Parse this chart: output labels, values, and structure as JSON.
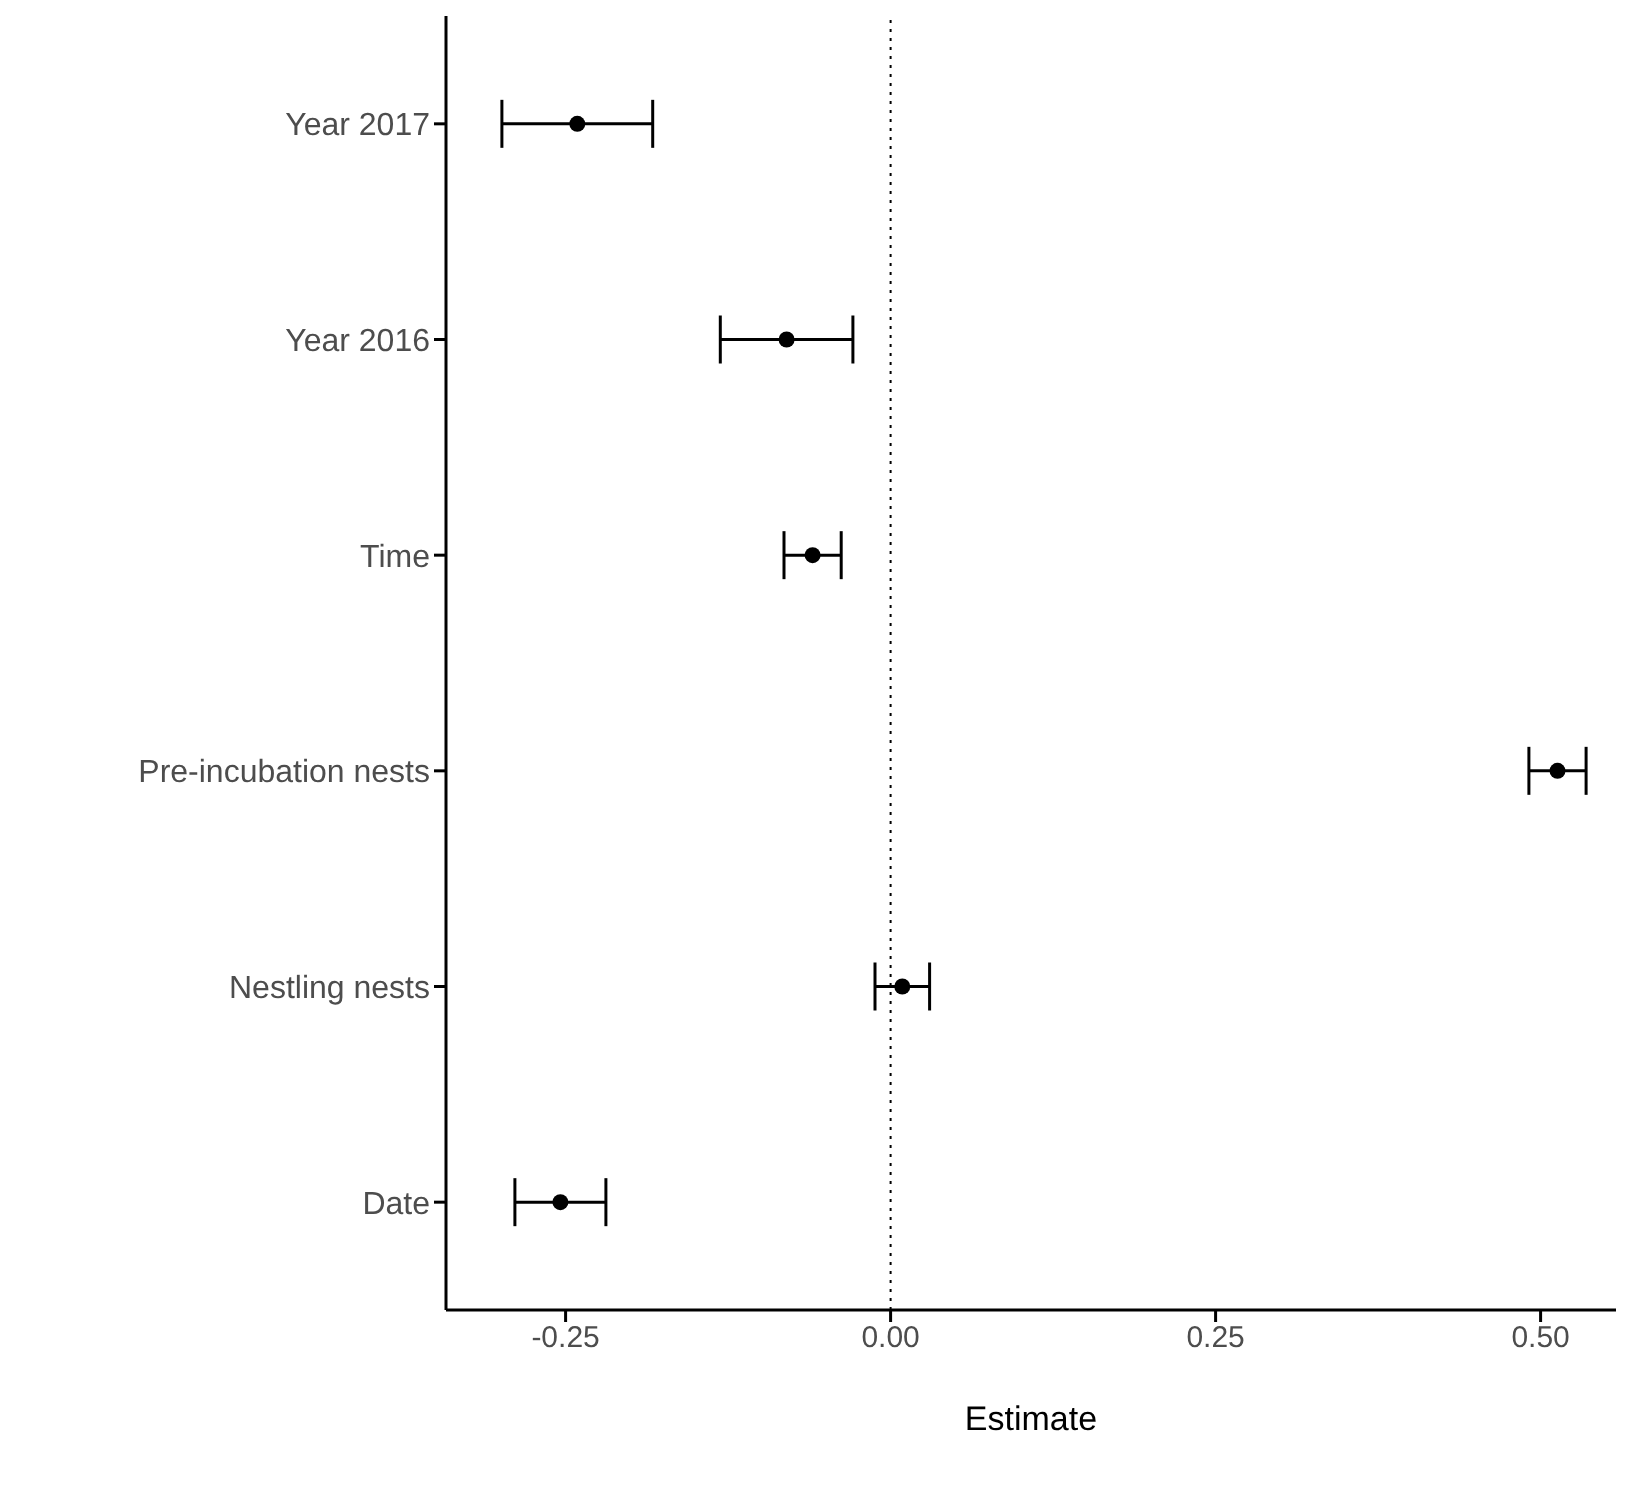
{
  "chart_data": {
    "type": "scatter",
    "orientation": "horizontal",
    "categories": [
      "Year 2017",
      "Year 2016",
      "Time",
      "Pre-incubation nests",
      "Nestling nests",
      "Date"
    ],
    "series": [
      {
        "color": "#000000",
        "values": [
          -0.241,
          -0.08,
          -0.06,
          0.513,
          0.009,
          -0.254
        ],
        "errors": [
          0.058,
          0.051,
          0.022,
          0.022,
          0.021,
          0.035
        ]
      }
    ],
    "xlim": [
      -0.342,
      0.558
    ],
    "xticks": [
      {
        "value": -0.25,
        "label": "-0.25"
      },
      {
        "value": 0,
        "label": "0.00"
      },
      {
        "value": 0.25,
        "label": "0.25"
      },
      {
        "value": 0.5,
        "label": "0.50"
      }
    ],
    "xlabel": "Estimate",
    "marker": "circle",
    "grid": false,
    "legend": false,
    "ref_lines": [
      {
        "axis": "x",
        "value": 0,
        "color": "#000000",
        "line_style": "dotted"
      }
    ]
  }
}
